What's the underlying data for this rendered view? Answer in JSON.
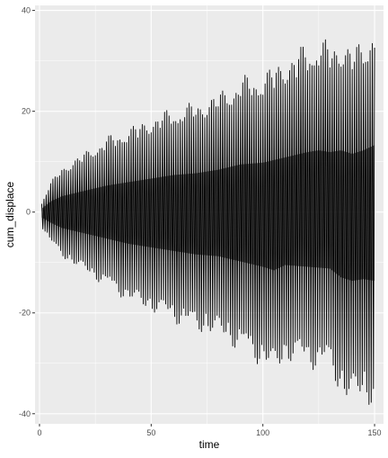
{
  "chart_data": {
    "type": "line",
    "title": "",
    "xlabel": "time",
    "ylabel": "cum_displace",
    "xlim": [
      -2,
      154
    ],
    "ylim": [
      -42,
      41
    ],
    "x_ticks": [
      0,
      50,
      100,
      150
    ],
    "y_ticks": [
      -40,
      -20,
      0,
      20,
      40
    ],
    "x_tick_labels": [
      "0",
      "50",
      "100",
      "150"
    ],
    "y_tick_labels": [
      "-40",
      "-20",
      "0",
      "20",
      "40"
    ],
    "grid": true,
    "legend": "none",
    "series": [
      {
        "x_start": 1,
        "x_end": 150,
        "oscillation_period": 1,
        "upper_envelope": {
          "x": [
            1,
            5,
            10,
            20,
            30,
            40,
            50,
            60,
            70,
            80,
            90,
            100,
            110,
            120,
            125,
            130,
            135,
            140,
            145,
            150
          ],
          "y": [
            2,
            6,
            9,
            12,
            15,
            17,
            19,
            21,
            22,
            24,
            27,
            28,
            31,
            34,
            35,
            34,
            35,
            33,
            35,
            38
          ]
        },
        "lower_envelope": {
          "x": [
            1,
            5,
            10,
            20,
            30,
            40,
            50,
            60,
            70,
            80,
            90,
            100,
            105,
            110,
            120,
            130,
            135,
            140,
            145,
            150
          ],
          "y": [
            -3,
            -6,
            -9,
            -12,
            -15,
            -18,
            -20,
            -22,
            -24,
            -25,
            -28,
            -31,
            -33,
            -30,
            -31,
            -32,
            -37,
            -39,
            -38,
            -39
          ]
        }
      }
    ]
  },
  "colors": {
    "panel_background": "#ebebeb",
    "grid_major": "#ffffff",
    "line": "#000000",
    "axis_text": "#4d4d4d",
    "axis_title": "#000000"
  }
}
